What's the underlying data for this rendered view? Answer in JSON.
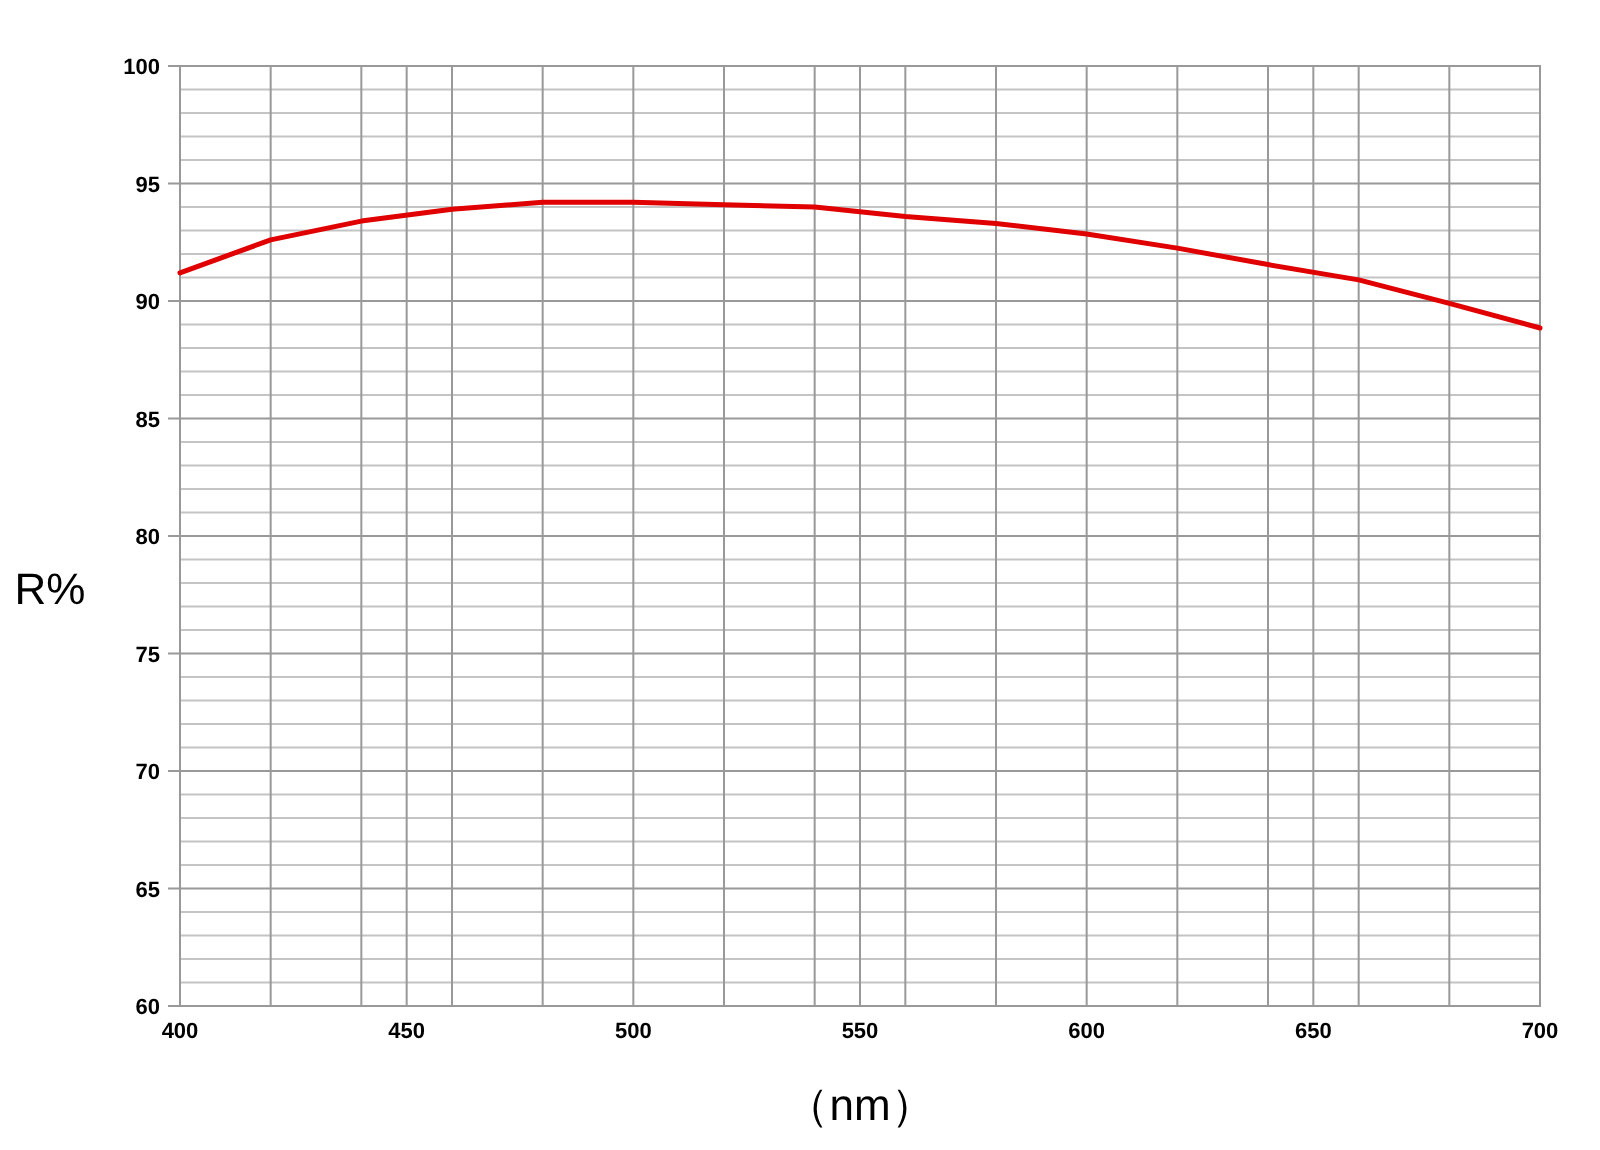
{
  "chart_data": {
    "type": "line",
    "xlabel": "（nm）",
    "ylabel": "R%",
    "x": [
      400,
      410,
      420,
      440,
      460,
      480,
      500,
      520,
      540,
      560,
      580,
      600,
      620,
      640,
      660,
      680,
      700
    ],
    "series": [
      {
        "color": "#e00000",
        "values": [
          91.2,
          91.9,
          92.6,
          93.4,
          93.9,
          94.2,
          94.2,
          94.1,
          94.0,
          93.6,
          93.3,
          92.85,
          92.25,
          91.55,
          90.9,
          89.9,
          88.85
        ]
      }
    ],
    "xlim": [
      400,
      700
    ],
    "ylim": [
      60,
      100
    ],
    "xticks": [
      400,
      {
        "value": 420,
        "label": null
      },
      {
        "value": 440,
        "label": null
      },
      450,
      {
        "value": 460,
        "label": null
      },
      {
        "value": 480,
        "label": null
      },
      500,
      {
        "value": 520,
        "label": null
      },
      {
        "value": 540,
        "label": null
      },
      550,
      {
        "value": 560,
        "label": null
      },
      {
        "value": 580,
        "label": null
      },
      600,
      {
        "value": 620,
        "label": null
      },
      {
        "value": 640,
        "label": null
      },
      650,
      {
        "value": 660,
        "label": null
      },
      {
        "value": 680,
        "label": null
      },
      700
    ],
    "yticks": [
      60,
      {
        "value": 61,
        "label": null
      },
      {
        "value": 62,
        "label": null
      },
      {
        "value": 63,
        "label": null
      },
      {
        "value": 64,
        "label": null
      },
      65,
      {
        "value": 66,
        "label": null
      },
      {
        "value": 67,
        "label": null
      },
      {
        "value": 68,
        "label": null
      },
      {
        "value": 69,
        "label": null
      },
      70,
      {
        "value": 71,
        "label": null
      },
      {
        "value": 72,
        "label": null
      },
      {
        "value": 73,
        "label": null
      },
      {
        "value": 74,
        "label": null
      },
      75,
      {
        "value": 76,
        "label": null
      },
      {
        "value": 77,
        "label": null
      },
      {
        "value": 78,
        "label": null
      },
      {
        "value": 79,
        "label": null
      },
      80,
      {
        "value": 81,
        "label": null
      },
      {
        "value": 82,
        "label": null
      },
      {
        "value": 83,
        "label": null
      },
      {
        "value": 84,
        "label": null
      },
      85,
      {
        "value": 86,
        "label": null
      },
      {
        "value": 87,
        "label": null
      },
      {
        "value": 88,
        "label": null
      },
      {
        "value": 89,
        "label": null
      },
      90,
      {
        "value": 91,
        "label": null
      },
      {
        "value": 92,
        "label": null
      },
      {
        "value": 93,
        "label": null
      },
      {
        "value": 94,
        "label": null
      },
      95,
      {
        "value": 96,
        "label": null
      },
      {
        "value": 97,
        "label": null
      },
      {
        "value": 98,
        "label": null
      },
      {
        "value": 99,
        "label": null
      },
      100
    ],
    "grid": true,
    "marker": "none",
    "line_style": "solid"
  }
}
